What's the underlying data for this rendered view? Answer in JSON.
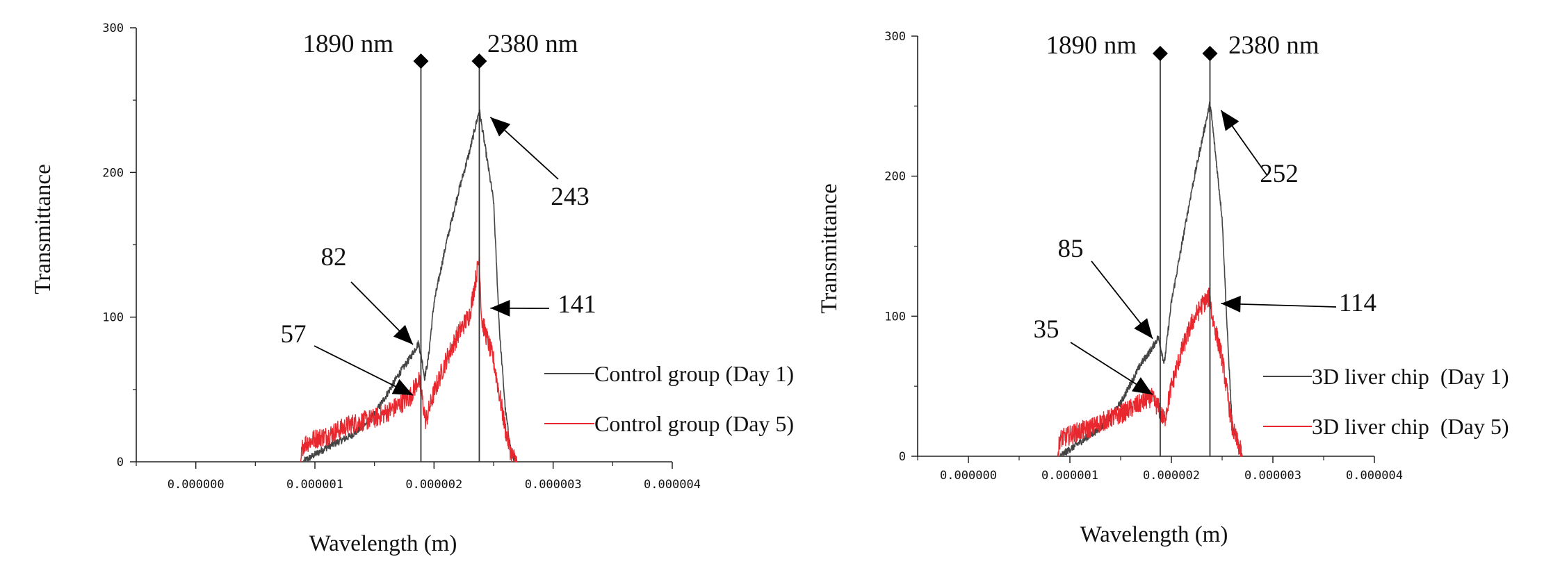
{
  "chart_data": [
    {
      "type": "line",
      "xlabel": "Wavelength (m)",
      "ylabel": "Transmittance",
      "xlim": [
        -5e-07,
        4e-06
      ],
      "ylim": [
        0,
        300
      ],
      "x_ticks": [
        0,
        1e-06,
        2e-06,
        3e-06,
        4e-06
      ],
      "x_tick_labels": [
        "0.000000",
        "0.000001",
        "0.000002",
        "0.000003",
        "0.000004"
      ],
      "y_ticks": [
        0,
        100,
        200,
        300
      ],
      "y_tick_labels": [
        "0",
        "100",
        "200",
        "300"
      ],
      "markers": [
        {
          "x": 1.89e-06,
          "label": "1890 nm"
        },
        {
          "x": 2.38e-06,
          "label": "2380 nm"
        }
      ],
      "series": [
        {
          "name": "Control group (Day 1)",
          "color": "#444444",
          "noise": 2.5,
          "points": [
            [
              9e-07,
              0
            ],
            [
              1e-06,
              5
            ],
            [
              1.1e-06,
              10
            ],
            [
              1.2e-06,
              14
            ],
            [
              1.3e-06,
              18
            ],
            [
              1.4e-06,
              24
            ],
            [
              1.5e-06,
              33
            ],
            [
              1.6e-06,
              46
            ],
            [
              1.7e-06,
              60
            ],
            [
              1.8e-06,
              72
            ],
            [
              1.87e-06,
              82
            ],
            [
              1.9e-06,
              70
            ],
            [
              1.92e-06,
              58
            ],
            [
              1.95e-06,
              70
            ],
            [
              2e-06,
              110
            ],
            [
              2.1e-06,
              150
            ],
            [
              2.2e-06,
              185
            ],
            [
              2.3e-06,
              215
            ],
            [
              2.38e-06,
              243
            ],
            [
              2.4e-06,
              233
            ],
            [
              2.5e-06,
              180
            ],
            [
              2.55e-06,
              90
            ],
            [
              2.6e-06,
              35
            ],
            [
              2.65e-06,
              5
            ],
            [
              2.7e-06,
              0
            ]
          ]
        },
        {
          "name": "Control group (Day 5)",
          "color": "#e8282e",
          "noise": 7,
          "points": [
            [
              8.8e-07,
              0
            ],
            [
              9e-07,
              12
            ],
            [
              1e-06,
              16
            ],
            [
              1.1e-06,
              18
            ],
            [
              1.2e-06,
              22
            ],
            [
              1.3e-06,
              26
            ],
            [
              1.4e-06,
              28
            ],
            [
              1.5e-06,
              30
            ],
            [
              1.6e-06,
              34
            ],
            [
              1.7e-06,
              39
            ],
            [
              1.8e-06,
              45
            ],
            [
              1.87e-06,
              57
            ],
            [
              1.9e-06,
              44
            ],
            [
              1.93e-06,
              28
            ],
            [
              2e-06,
              48
            ],
            [
              2.1e-06,
              70
            ],
            [
              2.2e-06,
              88
            ],
            [
              2.3e-06,
              102
            ],
            [
              2.38e-06,
              141
            ],
            [
              2.4e-06,
              98
            ],
            [
              2.5e-06,
              70
            ],
            [
              2.6e-06,
              22
            ],
            [
              2.65e-06,
              5
            ],
            [
              2.7e-06,
              0
            ]
          ]
        }
      ],
      "annotations": [
        {
          "text": "243",
          "target": [
            2.38e-06,
            243
          ]
        },
        {
          "text": "141",
          "target": [
            2.38e-06,
            111
          ]
        },
        {
          "text": "82",
          "target": [
            1.87e-06,
            82
          ]
        },
        {
          "text": "57",
          "target": [
            1.87e-06,
            47
          ]
        }
      ]
    },
    {
      "type": "line",
      "xlabel": "Wavelength (m)",
      "ylabel": "Transmittance",
      "xlim": [
        -5e-07,
        4e-06
      ],
      "ylim": [
        0,
        300
      ],
      "x_ticks": [
        0,
        1e-06,
        2e-06,
        3e-06,
        4e-06
      ],
      "x_tick_labels": [
        "0.000000",
        "0.000001",
        "0.000002",
        "0.000003",
        "0.000004"
      ],
      "y_ticks": [
        0,
        100,
        200,
        300
      ],
      "y_tick_labels": [
        "0",
        "100",
        "200",
        "300"
      ],
      "markers": [
        {
          "x": 1.89e-06,
          "label": "1890 nm"
        },
        {
          "x": 2.38e-06,
          "label": "2380 nm"
        }
      ],
      "series": [
        {
          "name": "3D liver chip  (Day 1)",
          "color": "#444444",
          "noise": 2.5,
          "points": [
            [
              9e-07,
              0
            ],
            [
              1e-06,
              5
            ],
            [
              1.1e-06,
              10
            ],
            [
              1.2e-06,
              15
            ],
            [
              1.3e-06,
              20
            ],
            [
              1.4e-06,
              28
            ],
            [
              1.5e-06,
              38
            ],
            [
              1.6e-06,
              52
            ],
            [
              1.7e-06,
              66
            ],
            [
              1.8e-06,
              76
            ],
            [
              1.87e-06,
              85
            ],
            [
              1.9e-06,
              76
            ],
            [
              1.93e-06,
              66
            ],
            [
              2e-06,
              110
            ],
            [
              2.1e-06,
              150
            ],
            [
              2.2e-06,
              190
            ],
            [
              2.3e-06,
              225
            ],
            [
              2.38e-06,
              252
            ],
            [
              2.4e-06,
              240
            ],
            [
              2.5e-06,
              170
            ],
            [
              2.55e-06,
              90
            ],
            [
              2.6e-06,
              20
            ],
            [
              2.7e-06,
              0
            ]
          ]
        },
        {
          "name": "3D liver chip  (Day 5)",
          "color": "#e8282e",
          "noise": 7,
          "points": [
            [
              8.8e-07,
              0
            ],
            [
              9e-07,
              12
            ],
            [
              1e-06,
              15
            ],
            [
              1.1e-06,
              18
            ],
            [
              1.2e-06,
              20
            ],
            [
              1.3e-06,
              24
            ],
            [
              1.4e-06,
              27
            ],
            [
              1.5e-06,
              30
            ],
            [
              1.6e-06,
              34
            ],
            [
              1.7e-06,
              38
            ],
            [
              1.8e-06,
              42
            ],
            [
              1.87e-06,
              35
            ],
            [
              1.9e-06,
              30
            ],
            [
              1.93e-06,
              25
            ],
            [
              2e-06,
              50
            ],
            [
              2.1e-06,
              75
            ],
            [
              2.2e-06,
              95
            ],
            [
              2.3e-06,
              108
            ],
            [
              2.38e-06,
              114
            ],
            [
              2.4e-06,
              100
            ],
            [
              2.5e-06,
              70
            ],
            [
              2.6e-06,
              20
            ],
            [
              2.7e-06,
              0
            ]
          ]
        }
      ],
      "annotations": [
        {
          "text": "252",
          "target": [
            2.38e-06,
            252
          ]
        },
        {
          "text": "114",
          "target": [
            2.38e-06,
            114
          ]
        },
        {
          "text": "85",
          "target": [
            1.87e-06,
            85
          ]
        },
        {
          "text": "35",
          "target": [
            1.87e-06,
            45
          ]
        }
      ]
    }
  ]
}
